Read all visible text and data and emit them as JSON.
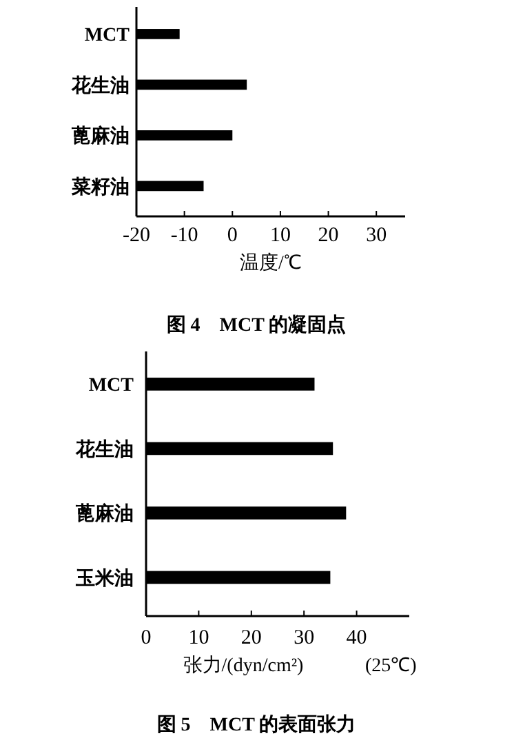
{
  "chart_data": [
    {
      "type": "bar",
      "orientation": "horizontal",
      "title": "图 4　MCT 的凝固点",
      "xlabel": "温度/℃",
      "categories": [
        "MCT",
        "花生油",
        "蓖麻油",
        "菜籽油"
      ],
      "base": [
        -20,
        -20,
        -20,
        -20
      ],
      "values": [
        9,
        23,
        20,
        14
      ],
      "color": "#000000",
      "xlim": [
        -20,
        36
      ],
      "xticks": [
        -20,
        -10,
        0,
        10,
        20,
        30
      ],
      "grid": false
    },
    {
      "type": "bar",
      "orientation": "horizontal",
      "title": "图 5　MCT 的表面张力",
      "xlabel": "张力/(dyn/cm²)",
      "annotations": [
        "(25℃)"
      ],
      "categories": [
        "MCT",
        "花生油",
        "蓖麻油",
        "玉米油"
      ],
      "values": [
        32,
        35.5,
        38,
        35
      ],
      "color": "#000000",
      "xlim": [
        0,
        50
      ],
      "xticks": [
        0,
        10,
        20,
        30,
        40
      ],
      "grid": false
    }
  ]
}
